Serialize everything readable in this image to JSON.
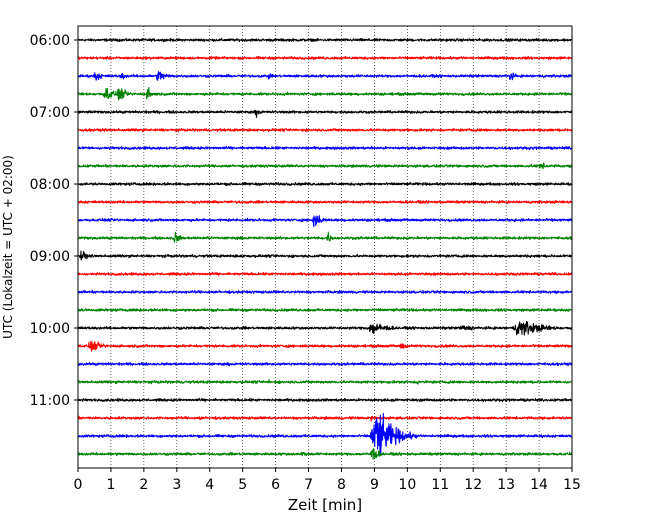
{
  "chart_data": {
    "type": "line",
    "title": "",
    "xlabel": "Zeit  [min]",
    "ylabel": "UTC (Lokalzeit = UTC + 02:00)",
    "xlim": [
      0,
      15
    ],
    "x_ticks": [
      0,
      1,
      2,
      3,
      4,
      5,
      6,
      7,
      8,
      9,
      10,
      11,
      12,
      13,
      14,
      15
    ],
    "x_tick_labels": [
      "0",
      "1",
      "2",
      "3",
      "4",
      "5",
      "6",
      "7",
      "8",
      "9",
      "10",
      "11",
      "12",
      "13",
      "14",
      "15"
    ],
    "y_tick_labels": [
      "06:00",
      "07:00",
      "08:00",
      "09:00",
      "10:00",
      "11:00"
    ],
    "y_tick_trace_index": [
      0,
      4,
      8,
      12,
      16,
      20
    ],
    "grid": "vertical dotted at each minute",
    "trace_interval_min": 15,
    "trace_colors": [
      "#000000",
      "#ff0000",
      "#0000ff",
      "#008000"
    ],
    "traces": [
      {
        "start": "06:00",
        "color": "#000000",
        "events": []
      },
      {
        "start": "06:15",
        "color": "#ff0000",
        "events": []
      },
      {
        "start": "06:30",
        "color": "#0000ff",
        "events": [
          {
            "t": 0.5,
            "amp": 0.45,
            "dur": 0.5
          },
          {
            "t": 1.3,
            "amp": 0.35,
            "dur": 0.4
          },
          {
            "t": 2.4,
            "amp": 0.55,
            "dur": 0.6
          },
          {
            "t": 5.8,
            "amp": 0.3,
            "dur": 0.2
          },
          {
            "t": 13.1,
            "amp": 0.45,
            "dur": 0.4
          }
        ]
      },
      {
        "start": "06:45",
        "color": "#008000",
        "events": [
          {
            "t": 0.8,
            "amp": 0.7,
            "dur": 0.6
          },
          {
            "t": 1.2,
            "amp": 0.6,
            "dur": 0.6
          },
          {
            "t": 2.1,
            "amp": 0.6,
            "dur": 0.4
          }
        ]
      },
      {
        "start": "07:00",
        "color": "#000000",
        "events": [
          {
            "t": 5.4,
            "amp": 0.35,
            "dur": 0.4
          }
        ]
      },
      {
        "start": "07:15",
        "color": "#ff0000",
        "events": []
      },
      {
        "start": "07:30",
        "color": "#0000ff",
        "events": []
      },
      {
        "start": "07:45",
        "color": "#008000",
        "events": [
          {
            "t": 14.0,
            "amp": 0.3,
            "dur": 0.6
          }
        ]
      },
      {
        "start": "08:00",
        "color": "#000000",
        "events": []
      },
      {
        "start": "08:15",
        "color": "#ff0000",
        "events": []
      },
      {
        "start": "08:30",
        "color": "#0000ff",
        "events": [
          {
            "t": 7.1,
            "amp": 0.7,
            "dur": 0.6
          }
        ]
      },
      {
        "start": "08:45",
        "color": "#008000",
        "events": [
          {
            "t": 2.9,
            "amp": 0.5,
            "dur": 0.5
          },
          {
            "t": 7.6,
            "amp": 0.6,
            "dur": 0.2
          }
        ]
      },
      {
        "start": "09:00",
        "color": "#000000",
        "events": [
          {
            "t": 0.1,
            "amp": 0.7,
            "dur": 0.3
          }
        ]
      },
      {
        "start": "09:15",
        "color": "#ff0000",
        "events": []
      },
      {
        "start": "09:30",
        "color": "#0000ff",
        "events": []
      },
      {
        "start": "09:45",
        "color": "#008000",
        "events": []
      },
      {
        "start": "10:00",
        "color": "#000000",
        "events": [
          {
            "t": 8.8,
            "amp": 0.6,
            "dur": 1.2
          },
          {
            "t": 13.2,
            "amp": 0.75,
            "dur": 1.8
          },
          {
            "t": 11.5,
            "amp": 0.25,
            "dur": 1.5
          }
        ]
      },
      {
        "start": "10:15",
        "color": "#ff0000",
        "events": [
          {
            "t": 0.3,
            "amp": 0.45,
            "dur": 1.0
          },
          {
            "t": 9.8,
            "amp": 0.4,
            "dur": 0.4
          }
        ]
      },
      {
        "start": "10:30",
        "color": "#0000ff",
        "events": []
      },
      {
        "start": "10:45",
        "color": "#008000",
        "events": [
          {
            "t": 5.8,
            "amp": 0.25,
            "dur": 0.2
          },
          {
            "t": 10.3,
            "amp": 0.25,
            "dur": 0.3
          }
        ]
      },
      {
        "start": "11:00",
        "color": "#000000",
        "events": []
      },
      {
        "start": "11:15",
        "color": "#ff0000",
        "events": [
          {
            "t": 3.7,
            "amp": 0.2,
            "dur": 0.3
          },
          {
            "t": 8.9,
            "amp": 0.25,
            "dur": 0.3
          }
        ]
      },
      {
        "start": "11:30",
        "color": "#0000ff",
        "events": [
          {
            "t": 8.9,
            "amp": 2.2,
            "dur": 1.4
          }
        ]
      },
      {
        "start": "11:45",
        "color": "#008000",
        "events": [
          {
            "t": 6.8,
            "amp": 0.35,
            "dur": 0.3
          },
          {
            "t": 8.9,
            "amp": 0.7,
            "dur": 0.5
          }
        ]
      }
    ]
  }
}
